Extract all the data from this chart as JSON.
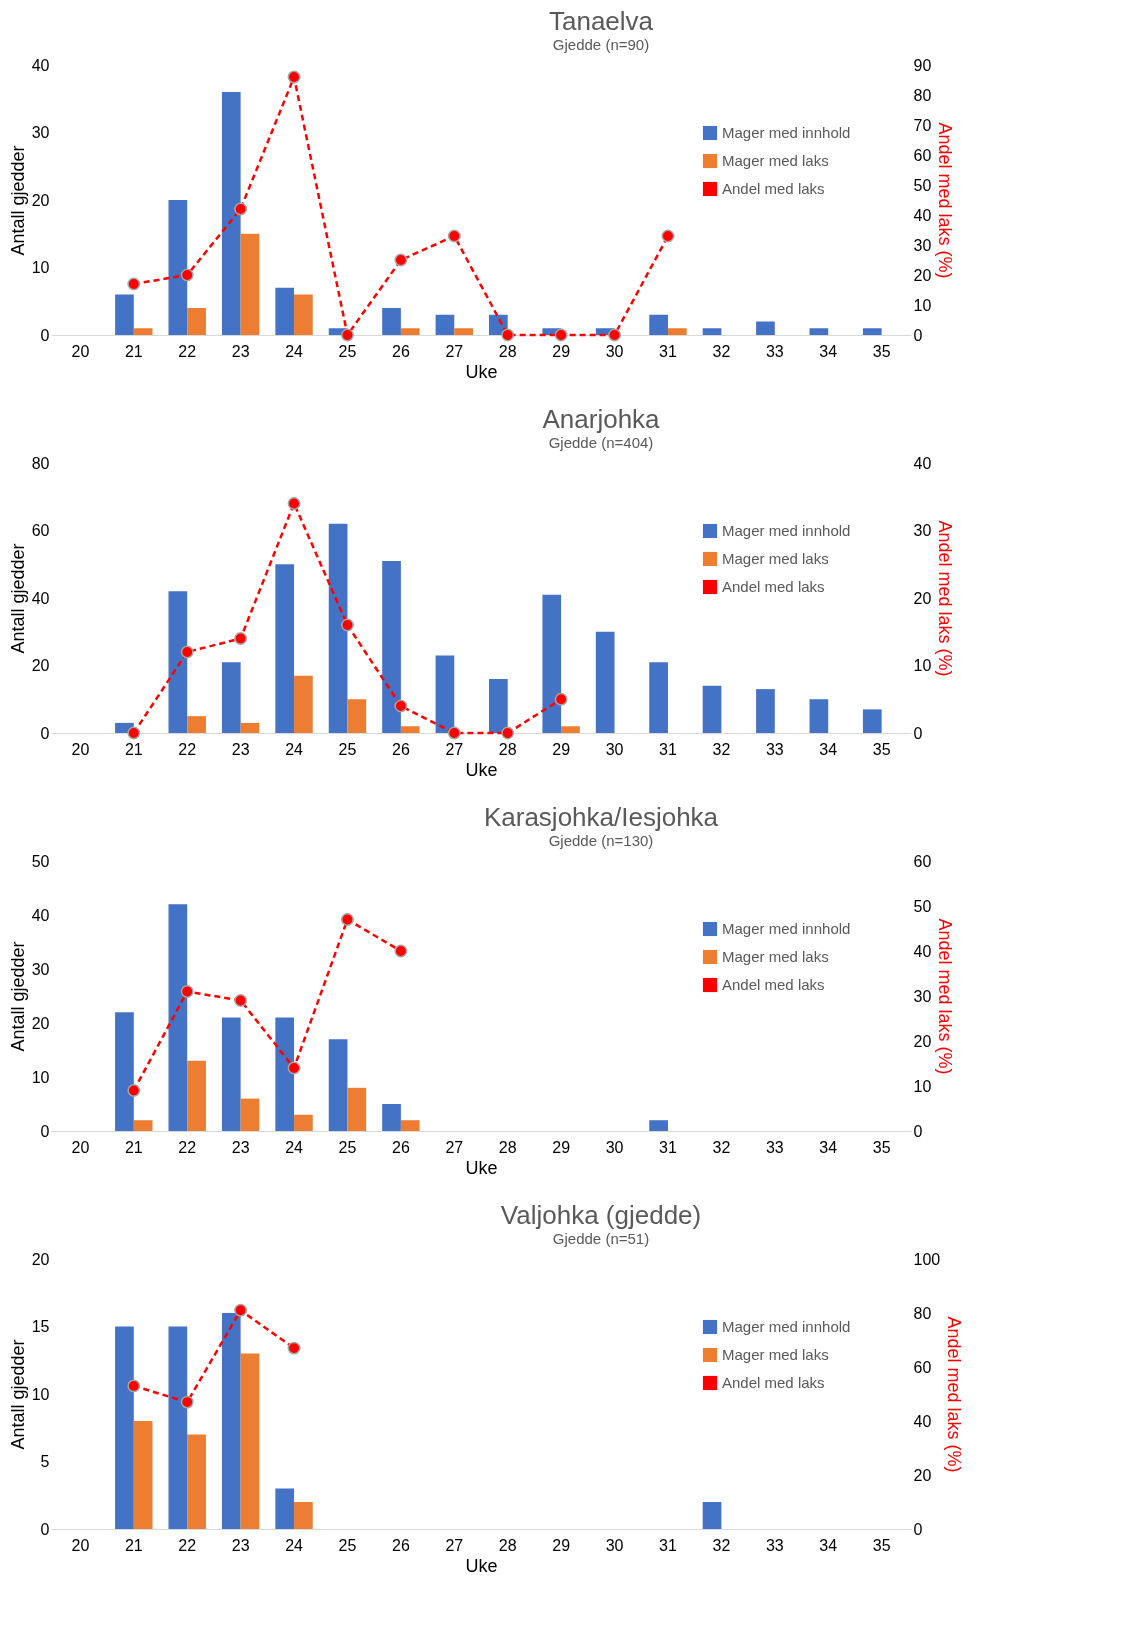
{
  "chart_data": [
    {
      "type": "bar",
      "title": "Tanaelva",
      "subtitle": "Gjedde (n=90)",
      "xlabel": "Uke",
      "ylabel": "Antall gjedder",
      "y2label": "Andel med laks (%)",
      "categories": [
        "20",
        "21",
        "22",
        "23",
        "24",
        "25",
        "26",
        "27",
        "28",
        "29",
        "30",
        "31",
        "32",
        "33",
        "34",
        "35"
      ],
      "ylim": [
        0,
        40
      ],
      "yticks": [
        0,
        10,
        20,
        30,
        40
      ],
      "y2lim": [
        0,
        90
      ],
      "y2ticks": [
        0,
        10,
        20,
        30,
        40,
        50,
        60,
        70,
        80,
        90
      ],
      "legend": "top right",
      "marker": "circle",
      "line_style": "dashed",
      "series": [
        {
          "name": "Mager med innhold",
          "color": "#4472c4",
          "values": [
            null,
            6,
            20,
            36,
            7,
            1,
            4,
            3,
            3,
            1,
            1,
            3,
            1,
            2,
            1,
            1
          ]
        },
        {
          "name": "Mager med laks",
          "color": "#ed7d31",
          "values": [
            null,
            1,
            4,
            15,
            6,
            0,
            1,
            1,
            0,
            0,
            0,
            1,
            null,
            null,
            null,
            null
          ]
        },
        {
          "name": "Andel med laks",
          "type": "line",
          "axis": "y2",
          "color": "#ff0000",
          "values": [
            null,
            17,
            20,
            42,
            86,
            0,
            25,
            33,
            0,
            0,
            0,
            33,
            null,
            null,
            null,
            null
          ]
        }
      ]
    },
    {
      "type": "bar",
      "title": "Anarjohka",
      "subtitle": "Gjedde (n=404)",
      "xlabel": "Uke",
      "ylabel": "Antall gjedder",
      "y2label": "Andel med laks (%)",
      "categories": [
        "20",
        "21",
        "22",
        "23",
        "24",
        "25",
        "26",
        "27",
        "28",
        "29",
        "30",
        "31",
        "32",
        "33",
        "34",
        "35"
      ],
      "ylim": [
        0,
        80
      ],
      "yticks": [
        0,
        20,
        40,
        60,
        80
      ],
      "y2lim": [
        0,
        40
      ],
      "y2ticks": [
        0,
        10,
        20,
        30,
        40
      ],
      "legend": "top right",
      "marker": "circle",
      "line_style": "dashed",
      "series": [
        {
          "name": "Mager med innhold",
          "color": "#4472c4",
          "values": [
            null,
            3,
            42,
            21,
            50,
            62,
            51,
            23,
            16,
            41,
            30,
            21,
            14,
            13,
            10,
            7
          ]
        },
        {
          "name": "Mager med laks",
          "color": "#ed7d31",
          "values": [
            null,
            0,
            5,
            3,
            17,
            10,
            2,
            0,
            0,
            2,
            null,
            null,
            null,
            null,
            null,
            null
          ]
        },
        {
          "name": "Andel med laks",
          "type": "line",
          "axis": "y2",
          "color": "#ff0000",
          "values": [
            null,
            0,
            12,
            14,
            34,
            16,
            4,
            0,
            0,
            5,
            null,
            null,
            null,
            null,
            null,
            null
          ]
        }
      ]
    },
    {
      "type": "bar",
      "title": "Karasjohka/Iesjohka",
      "subtitle": "Gjedde (n=130)",
      "xlabel": "Uke",
      "ylabel": "Antall gjedder",
      "y2label": "Andel med laks (%)",
      "categories": [
        "20",
        "21",
        "22",
        "23",
        "24",
        "25",
        "26",
        "27",
        "28",
        "29",
        "30",
        "31",
        "32",
        "33",
        "34",
        "35"
      ],
      "ylim": [
        0,
        50
      ],
      "yticks": [
        0,
        10,
        20,
        30,
        40,
        50
      ],
      "y2lim": [
        0,
        60
      ],
      "y2ticks": [
        0,
        10,
        20,
        30,
        40,
        50,
        60
      ],
      "legend": "top right",
      "marker": "circle",
      "line_style": "dashed",
      "series": [
        {
          "name": "Mager med innhold",
          "color": "#4472c4",
          "values": [
            null,
            22,
            42,
            21,
            21,
            17,
            5,
            null,
            null,
            null,
            null,
            2,
            null,
            null,
            null,
            null
          ]
        },
        {
          "name": "Mager med laks",
          "color": "#ed7d31",
          "values": [
            null,
            2,
            13,
            6,
            3,
            8,
            2,
            null,
            null,
            null,
            null,
            null,
            null,
            null,
            null,
            null
          ]
        },
        {
          "name": "Andel med laks",
          "type": "line",
          "axis": "y2",
          "color": "#ff0000",
          "values": [
            null,
            9,
            31,
            29,
            14,
            47,
            40,
            null,
            null,
            null,
            null,
            null,
            null,
            null,
            null,
            null
          ]
        }
      ]
    },
    {
      "type": "bar",
      "title": "Valjohka (gjedde)",
      "subtitle": "Gjedde (n=51)",
      "xlabel": "Uke",
      "ylabel": "Antall gjedder",
      "y2label": "Andel med laks (%)",
      "categories": [
        "20",
        "21",
        "22",
        "23",
        "24",
        "25",
        "26",
        "27",
        "28",
        "29",
        "30",
        "31",
        "32",
        "33",
        "34",
        "35"
      ],
      "ylim": [
        0,
        20
      ],
      "yticks": [
        0,
        5,
        10,
        15,
        20
      ],
      "y2lim": [
        0,
        100
      ],
      "y2ticks": [
        0,
        20,
        40,
        60,
        80,
        100
      ],
      "legend": "top right",
      "marker": "circle",
      "line_style": "dashed",
      "series": [
        {
          "name": "Mager med innhold",
          "color": "#4472c4",
          "values": [
            null,
            15,
            15,
            16,
            3,
            null,
            null,
            null,
            null,
            null,
            null,
            null,
            2,
            null,
            null,
            null
          ]
        },
        {
          "name": "Mager med laks",
          "color": "#ed7d31",
          "values": [
            null,
            8,
            7,
            13,
            2,
            null,
            null,
            null,
            null,
            null,
            null,
            null,
            null,
            null,
            null,
            null
          ]
        },
        {
          "name": "Andel med laks",
          "type": "line",
          "axis": "y2",
          "color": "#ff0000",
          "values": [
            null,
            53,
            47,
            81,
            67,
            null,
            null,
            null,
            null,
            null,
            null,
            null,
            null,
            null,
            null,
            null
          ]
        }
      ]
    }
  ]
}
